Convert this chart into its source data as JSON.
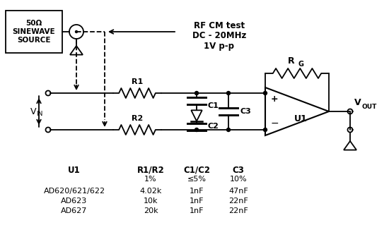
{
  "bg_color": "#ffffff",
  "line_color": "#000000",
  "table_headers": [
    "U1",
    "R1/R2",
    "C1/C2",
    "C3"
  ],
  "table_subheaders": [
    "",
    "1%",
    "≤5%",
    "10%"
  ],
  "table_rows": [
    [
      "AD620/621/622",
      "4.02k",
      "1nF",
      "47nF"
    ],
    [
      "AD623",
      "10k",
      "1nF",
      "22nF"
    ],
    [
      "AD627",
      "20k",
      "1nF",
      "22nF"
    ]
  ],
  "source_box_text": "50Ω\nSINEWAVE\nSOURCE",
  "rf_text": "RF CM test\nDC - 20MHz\n1V p-p",
  "vin_text": "V",
  "vin_sub": "IN",
  "vout_text": "V",
  "vout_sub": "OUT",
  "r1_label": "R1",
  "r2_label": "R2",
  "c1_label": "C1",
  "c2_label": "C2",
  "c3_label": "C3",
  "rg_label": "R",
  "rg_sub": "G",
  "u1_label": "U1",
  "plus_label": "+",
  "minus_label": "−"
}
